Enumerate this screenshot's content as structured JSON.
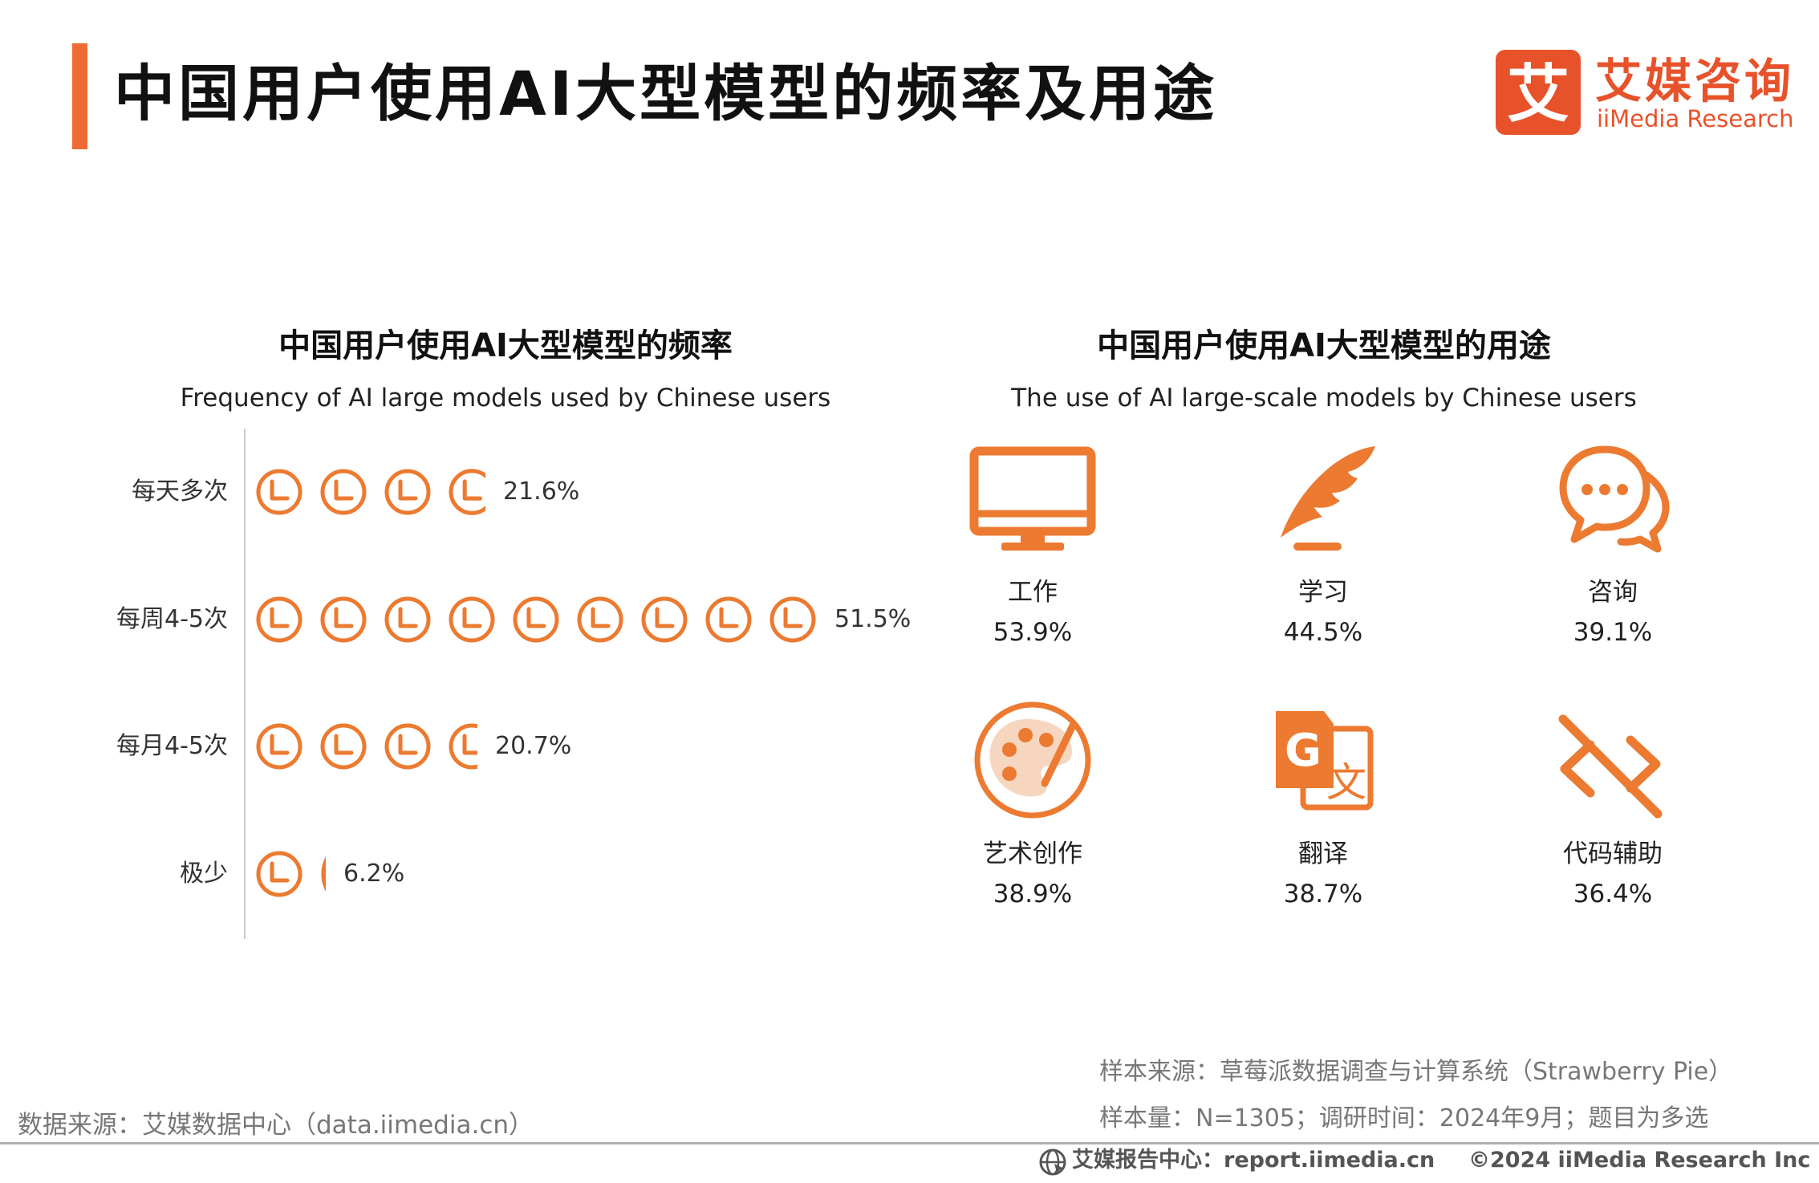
{
  "header": {
    "title": "中国用户使用AI大型模型的频率及用途",
    "logo_cn": "艾媒咨询",
    "logo_en": "iiMedia Research",
    "logo_char": "艾"
  },
  "colors": {
    "accent": "#f06a35",
    "icon": "#ec7a31",
    "brand": "#e8522a"
  },
  "chart_data": [
    {
      "type": "bar",
      "title": "中国用户使用AI大型模型的频率",
      "subtitle": "Frequency of AI large models used by Chinese users",
      "categories": [
        "每天多次",
        "每周4-5次",
        "每月4-5次",
        "极少"
      ],
      "values": [
        21.6,
        51.5,
        20.7,
        6.2
      ],
      "value_labels": [
        "21.6%",
        "51.5%",
        "20.7%",
        "6.2%"
      ],
      "unit": "%",
      "icon": "clock-icon",
      "icon_value": 5.72
    },
    {
      "type": "table",
      "title": "中国用户使用AI大型模型的用途",
      "subtitle": "The use of AI large-scale models by Chinese users",
      "categories": [
        "工作",
        "学习",
        "咨询",
        "艺术创作",
        "翻译",
        "代码辅助"
      ],
      "values": [
        53.9,
        44.5,
        39.1,
        38.9,
        38.7,
        36.4
      ],
      "value_labels": [
        "53.9%",
        "44.5%",
        "39.1%",
        "38.9%",
        "38.7%",
        "36.4%"
      ],
      "icons": [
        "monitor-icon",
        "quill-icon",
        "chat-bubbles-icon",
        "palette-icon",
        "translate-icon",
        "code-icon"
      ]
    }
  ],
  "footer": {
    "sample_source": "样本来源：草莓派数据调查与计算系统（Strawberry Pie）",
    "sample_size": "样本量：N=1305；调研时间：2024年9月；题目为多选",
    "data_source": "数据来源：艾媒数据中心（data.iimedia.cn）",
    "report_center": "艾媒报告中心：report.iimedia.cn",
    "copyright": "©2024  iiMedia Research  Inc"
  }
}
